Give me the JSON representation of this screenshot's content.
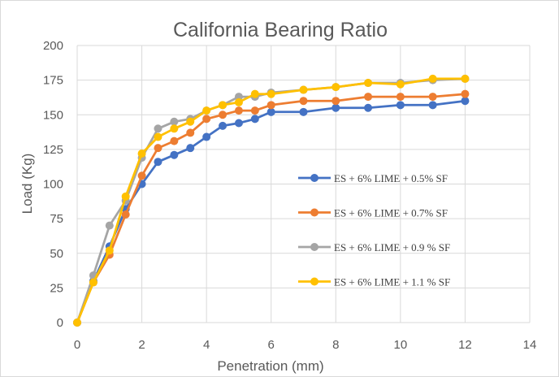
{
  "chart_data": {
    "type": "line",
    "title": "California Bearing Ratio",
    "xlabel": "Penetration (mm)",
    "ylabel": "Load (Kg)",
    "xlim": [
      0,
      14
    ],
    "ylim": [
      0,
      200
    ],
    "x_ticks": [
      0,
      2,
      4,
      6,
      8,
      10,
      12,
      14
    ],
    "y_ticks": [
      0,
      25,
      50,
      75,
      100,
      125,
      150,
      175,
      200
    ],
    "grid": true,
    "legend_position": "center-right",
    "series": [
      {
        "name": "ES + 6% LIME + 0.5% SF",
        "color": "#4472c4",
        "x": [
          0,
          0.5,
          1,
          1.5,
          2,
          2.5,
          3,
          3.5,
          4,
          4.5,
          5,
          5.5,
          6,
          7,
          8,
          9,
          10,
          11,
          12
        ],
        "values": [
          0,
          30,
          55,
          82,
          100,
          116,
          121,
          126,
          134,
          142,
          144,
          147,
          152,
          152,
          155,
          155,
          157,
          157,
          160
        ]
      },
      {
        "name": "ES + 6% LIME + 0.7% SF",
        "color": "#ed7d31",
        "x": [
          0,
          0.5,
          1,
          1.5,
          2,
          2.5,
          3,
          3.5,
          4,
          4.5,
          5,
          5.5,
          6,
          7,
          8,
          9,
          10,
          11,
          12
        ],
        "values": [
          0,
          29,
          49,
          78,
          106,
          126,
          131,
          137,
          147,
          150,
          153,
          153,
          157,
          160,
          160,
          163,
          163,
          163,
          165
        ]
      },
      {
        "name": "ES +  6% LIME + 0.9 % SF",
        "color": "#a5a5a5",
        "x": [
          0,
          0.5,
          1,
          1.5,
          2,
          2.5,
          3,
          3.5,
          4,
          4.5,
          5,
          5.5,
          6,
          7,
          8,
          9,
          10,
          11,
          12
        ],
        "values": [
          0,
          34,
          70,
          88,
          119,
          140,
          145,
          147,
          153,
          157,
          163,
          163,
          166,
          168,
          170,
          173,
          173,
          175,
          176
        ]
      },
      {
        "name": "ES + 6% LIME + 1.1 % SF",
        "color": "#ffc000",
        "x": [
          0,
          0.5,
          1,
          1.5,
          2,
          2.5,
          3,
          3.5,
          4,
          4.5,
          5,
          5.5,
          6,
          7,
          8,
          9,
          10,
          11,
          12
        ],
        "values": [
          0,
          29,
          52,
          91,
          122,
          134,
          140,
          145,
          153,
          157,
          159,
          165,
          165,
          168,
          170,
          173,
          172,
          176,
          176
        ]
      }
    ]
  }
}
